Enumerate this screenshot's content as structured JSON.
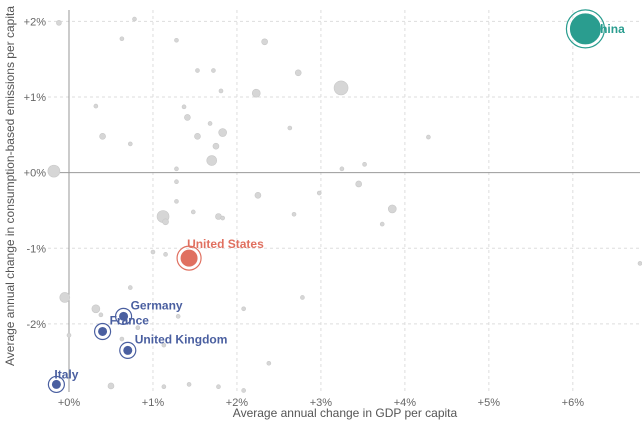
{
  "chart_data": {
    "type": "scatter",
    "xlabel": "Average annual change in GDP per capita",
    "ylabel": "Average annual change in consumption-based emissions per capita",
    "xlim": [
      -0.25,
      6.8
    ],
    "ylim": [
      -2.9,
      2.15
    ],
    "x_ticks": [
      "+0%",
      "+1%",
      "+2%",
      "+3%",
      "+4%",
      "+5%",
      "+6%"
    ],
    "x_tick_values": [
      0,
      1,
      2,
      3,
      4,
      5,
      6
    ],
    "y_ticks": [
      "+2%",
      "+1%",
      "+0%",
      "-1%",
      "-2%"
    ],
    "y_tick_values": [
      2,
      1,
      0,
      -1,
      -2
    ],
    "grid": true,
    "colors": {
      "highlight_us": "#e07060",
      "highlight_china": "#2a9d8f",
      "highlight_europe": "#4a5fa0",
      "background_points": "#d6d6d6"
    },
    "highlighted": [
      {
        "name": "China",
        "x": 6.15,
        "y": 1.9,
        "size": 16,
        "color": "#2a9d8f"
      },
      {
        "name": "United States",
        "x": 1.43,
        "y": -1.13,
        "size": 9,
        "color": "#e07060"
      },
      {
        "name": "Germany",
        "x": 0.65,
        "y": -1.9,
        "size": 5,
        "color": "#4a5fa0"
      },
      {
        "name": "France",
        "x": 0.4,
        "y": -2.1,
        "size": 5,
        "color": "#4a5fa0"
      },
      {
        "name": "United Kingdom",
        "x": 0.7,
        "y": -2.35,
        "size": 5,
        "color": "#4a5fa0"
      },
      {
        "name": "Italy",
        "x": -0.15,
        "y": -2.8,
        "size": 5,
        "color": "#4a5fa0"
      }
    ],
    "background_points": [
      [
        -0.12,
        1.98,
        2.5
      ],
      [
        0.63,
        1.77,
        2
      ],
      [
        0.78,
        2.03,
        2
      ],
      [
        1.28,
        1.75,
        2
      ],
      [
        2.33,
        1.73,
        3
      ],
      [
        1.53,
        1.35,
        2
      ],
      [
        1.72,
        1.35,
        2
      ],
      [
        2.73,
        1.32,
        3
      ],
      [
        1.81,
        1.08,
        2
      ],
      [
        2.23,
        1.05,
        4
      ],
      [
        3.24,
        1.12,
        7
      ],
      [
        0.32,
        0.88,
        2
      ],
      [
        1.37,
        0.87,
        2
      ],
      [
        1.41,
        0.73,
        3
      ],
      [
        1.68,
        0.65,
        2
      ],
      [
        1.83,
        0.53,
        4
      ],
      [
        1.53,
        0.48,
        3
      ],
      [
        0.4,
        0.48,
        3
      ],
      [
        2.63,
        0.59,
        2
      ],
      [
        4.28,
        0.47,
        2
      ],
      [
        0.73,
        0.38,
        2
      ],
      [
        1.75,
        0.35,
        3
      ],
      [
        1.7,
        0.16,
        5
      ],
      [
        -0.18,
        0.02,
        6
      ],
      [
        1.28,
        0.05,
        2
      ],
      [
        3.25,
        0.05,
        2
      ],
      [
        3.52,
        0.11,
        2
      ],
      [
        1.28,
        -0.12,
        2
      ],
      [
        3.45,
        -0.15,
        3
      ],
      [
        2.25,
        -0.3,
        3
      ],
      [
        1.28,
        -0.38,
        2
      ],
      [
        2.98,
        -0.27,
        2
      ],
      [
        3.85,
        -0.48,
        4
      ],
      [
        1.48,
        -0.52,
        2
      ],
      [
        1.78,
        -0.58,
        3
      ],
      [
        1.83,
        -0.6,
        2
      ],
      [
        2.68,
        -0.55,
        2
      ],
      [
        3.73,
        -0.68,
        2
      ],
      [
        1.12,
        -0.58,
        6
      ],
      [
        1.15,
        -0.65,
        3
      ],
      [
        1.0,
        -1.05,
        2
      ],
      [
        1.15,
        -1.08,
        2
      ],
      [
        0.73,
        -1.52,
        2
      ],
      [
        -0.05,
        -1.65,
        5
      ],
      [
        2.78,
        -1.65,
        2
      ],
      [
        0.32,
        -1.8,
        4
      ],
      [
        0.38,
        -1.88,
        2
      ],
      [
        1.3,
        -1.9,
        2
      ],
      [
        2.08,
        -1.8,
        2
      ],
      [
        0.0,
        -2.15,
        2
      ],
      [
        0.63,
        -2.2,
        2
      ],
      [
        0.82,
        -2.05,
        2
      ],
      [
        1.13,
        -2.28,
        2
      ],
      [
        2.38,
        -2.52,
        2
      ],
      [
        0.5,
        -2.82,
        3
      ],
      [
        1.13,
        -2.83,
        2
      ],
      [
        1.43,
        -2.8,
        2
      ],
      [
        1.78,
        -2.83,
        2
      ],
      [
        2.08,
        -2.88,
        2
      ],
      [
        6.8,
        -1.2,
        2
      ]
    ]
  }
}
